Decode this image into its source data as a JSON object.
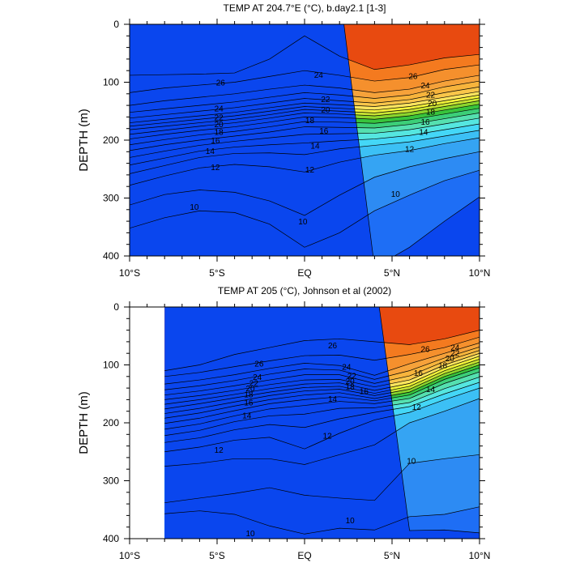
{
  "chart_data": [
    {
      "type": "contour",
      "title": "TEMP AT 204.7°E (°C), b.day2.1 [1-3]",
      "xlabel": "",
      "ylabel": "DEPTH (m)",
      "xlim": [
        -10,
        10
      ],
      "ylim": [
        400,
        0
      ],
      "x_ticks": [
        {
          "value": -10,
          "label": "10°S"
        },
        {
          "value": -5,
          "label": "5°S"
        },
        {
          "value": 0,
          "label": "EQ"
        },
        {
          "value": 5,
          "label": "5°N"
        },
        {
          "value": 10,
          "label": "10°N"
        }
      ],
      "y_ticks": [
        {
          "value": 0,
          "label": "0"
        },
        {
          "value": 100,
          "label": "100"
        },
        {
          "value": 200,
          "label": "200"
        },
        {
          "value": 300,
          "label": "300"
        },
        {
          "value": 400,
          "label": "400"
        }
      ],
      "data_extent": [
        -10,
        10
      ],
      "contour_levels": [
        8,
        9,
        10,
        11,
        12,
        13,
        14,
        15,
        16,
        17,
        18,
        19,
        20,
        21,
        22,
        23,
        24,
        25,
        26,
        27
      ],
      "isotherm_depths": {
        "x": [
          -10,
          -8,
          -6,
          -4,
          -2,
          0,
          2,
          4,
          6,
          8,
          10
        ],
        "27": [
          null,
          null,
          null,
          null,
          null,
          null,
          null,
          null,
          null,
          null,
          null
        ],
        "26": [
          88,
          87,
          86,
          84,
          60,
          20,
          55,
          78,
          70,
          58,
          52
        ],
        "25": [
          118,
          110,
          105,
          100,
          90,
          80,
          88,
          98,
          92,
          78,
          70
        ],
        "24": [
          140,
          132,
          126,
          120,
          112,
          105,
          110,
          118,
          112,
          98,
          88
        ],
        "23": [
          152,
          146,
          140,
          134,
          126,
          118,
          122,
          128,
          122,
          108,
          98
        ],
        "22": [
          162,
          156,
          150,
          144,
          136,
          128,
          132,
          136,
          130,
          118,
          108
        ],
        "21": [
          170,
          164,
          158,
          152,
          144,
          136,
          139,
          142,
          136,
          126,
          116
        ],
        "20": [
          176,
          170,
          164,
          158,
          150,
          142,
          145,
          148,
          142,
          132,
          122
        ],
        "19": [
          182,
          176,
          170,
          164,
          156,
          147,
          150,
          153,
          147,
          137,
          127
        ],
        "18": [
          190,
          183,
          176,
          170,
          162,
          153,
          155,
          158,
          152,
          142,
          132
        ],
        "17": [
          198,
          190,
          183,
          177,
          169,
          160,
          161,
          164,
          158,
          148,
          138
        ],
        "16": [
          208,
          199,
          191,
          185,
          177,
          168,
          169,
          171,
          165,
          155,
          145
        ],
        "15": [
          218,
          208,
          200,
          193,
          186,
          177,
          178,
          179,
          173,
          163,
          153
        ],
        "14": [
          230,
          219,
          209,
          202,
          196,
          190,
          189,
          188,
          182,
          172,
          162
        ],
        "13": [
          243,
          231,
          219,
          212,
          208,
          205,
          201,
          198,
          192,
          182,
          172
        ],
        "12": [
          258,
          244,
          230,
          223,
          222,
          225,
          215,
          209,
          203,
          193,
          183
        ],
        "11": [
          278,
          262,
          248,
          242,
          246,
          255,
          238,
          226,
          218,
          206,
          196
        ],
        "10": [
          312,
          294,
          286,
          290,
          305,
          330,
          295,
          264,
          246,
          232,
          220
        ],
        "9": [
          352,
          334,
          322,
          325,
          345,
          385,
          360,
          322,
          295,
          270,
          252
        ],
        "8": [
          null,
          null,
          null,
          null,
          null,
          null,
          null,
          420,
          385,
          340,
          298
        ]
      },
      "contour_labels": [
        {
          "value": "26",
          "x": -4.8,
          "depth": 100
        },
        {
          "value": "24",
          "x": 0.8,
          "depth": 87
        },
        {
          "value": "26",
          "x": 6.2,
          "depth": 89
        },
        {
          "value": "24",
          "x": 6.9,
          "depth": 105
        },
        {
          "value": "22",
          "x": 7.2,
          "depth": 121
        },
        {
          "value": "20",
          "x": 7.3,
          "depth": 136
        },
        {
          "value": "18",
          "x": 7.2,
          "depth": 150
        },
        {
          "value": "22",
          "x": 1.2,
          "depth": 129
        },
        {
          "value": "20",
          "x": 1.2,
          "depth": 147
        },
        {
          "value": "18",
          "x": 0.3,
          "depth": 165
        },
        {
          "value": "16",
          "x": 1.1,
          "depth": 183
        },
        {
          "value": "16",
          "x": 6.9,
          "depth": 168
        },
        {
          "value": "14",
          "x": 6.8,
          "depth": 185
        },
        {
          "value": "12",
          "x": 6.0,
          "depth": 215
        },
        {
          "value": "24",
          "x": -4.9,
          "depth": 145
        },
        {
          "value": "22",
          "x": -4.9,
          "depth": 160
        },
        {
          "value": "20",
          "x": -4.9,
          "depth": 172
        },
        {
          "value": "18",
          "x": -4.9,
          "depth": 185
        },
        {
          "value": "16",
          "x": -5.1,
          "depth": 200
        },
        {
          "value": "14",
          "x": -5.4,
          "depth": 218
        },
        {
          "value": "12",
          "x": -5.1,
          "depth": 246
        },
        {
          "value": "14",
          "x": 0.6,
          "depth": 209
        },
        {
          "value": "12",
          "x": 0.3,
          "depth": 250
        },
        {
          "value": "10",
          "x": -6.3,
          "depth": 315
        },
        {
          "value": "10",
          "x": -0.1,
          "depth": 340
        },
        {
          "value": "10",
          "x": 5.2,
          "depth": 292
        }
      ]
    },
    {
      "type": "contour",
      "title": "TEMP AT 205 (°C), Johnson et al (2002)",
      "xlabel": "",
      "ylabel": "DEPTH (m)",
      "xlim": [
        -10,
        10
      ],
      "ylim": [
        400,
        0
      ],
      "x_ticks": [
        {
          "value": -10,
          "label": "10°S"
        },
        {
          "value": -5,
          "label": "5°S"
        },
        {
          "value": 0,
          "label": "EQ"
        },
        {
          "value": 5,
          "label": "5°N"
        },
        {
          "value": 10,
          "label": "10°N"
        }
      ],
      "y_ticks": [
        {
          "value": 0,
          "label": "0"
        },
        {
          "value": 100,
          "label": "100"
        },
        {
          "value": 200,
          "label": "200"
        },
        {
          "value": 300,
          "label": "300"
        },
        {
          "value": 400,
          "label": "400"
        }
      ],
      "data_extent": [
        -8,
        10
      ],
      "contour_levels": [
        8,
        9,
        10,
        11,
        12,
        13,
        14,
        15,
        16,
        17,
        18,
        19,
        20,
        21,
        22,
        23,
        24,
        25,
        26,
        27
      ],
      "isotherm_depths": {
        "x": [
          -8,
          -6,
          -4,
          -2,
          0,
          2,
          4,
          6,
          8,
          10
        ],
        "27": [
          null,
          null,
          null,
          null,
          null,
          null,
          null,
          null,
          null,
          null
        ],
        "26": [
          110,
          100,
          82,
          70,
          58,
          55,
          60,
          65,
          55,
          40
        ],
        "25": [
          120,
          113,
          103,
          93,
          84,
          83,
          92,
          82,
          70,
          52
        ],
        "24": [
          133,
          126,
          117,
          106,
          97,
          101,
          118,
          98,
          80,
          62
        ],
        "23": [
          143,
          136,
          127,
          116,
          107,
          109,
          125,
          110,
          88,
          69
        ],
        "22": [
          152,
          145,
          136,
          126,
          117,
          117,
          132,
          119,
          94,
          75
        ],
        "21": [
          160,
          153,
          144,
          134,
          126,
          125,
          138,
          126,
          100,
          80
        ],
        "20": [
          168,
          160,
          151,
          141,
          133,
          131,
          144,
          132,
          105,
          85
        ],
        "19": [
          176,
          167,
          157,
          147,
          139,
          137,
          149,
          137,
          110,
          90
        ],
        "18": [
          184,
          175,
          164,
          153,
          145,
          142,
          153,
          142,
          115,
          95
        ],
        "17": [
          192,
          183,
          171,
          160,
          152,
          148,
          158,
          147,
          120,
          100
        ],
        "16": [
          201,
          192,
          179,
          167,
          160,
          155,
          162,
          152,
          125,
          105
        ],
        "15": [
          211,
          202,
          188,
          176,
          170,
          163,
          167,
          158,
          132,
          112
        ],
        "14": [
          222,
          213,
          198,
          188,
          185,
          175,
          174,
          165,
          141,
          121
        ],
        "13": [
          234,
          226,
          212,
          203,
          208,
          193,
          182,
          172,
          150,
          130
        ],
        "12": [
          250,
          242,
          230,
          225,
          245,
          218,
          195,
          182,
          160,
          140
        ],
        "11": [
          275,
          270,
          262,
          262,
          272,
          255,
          238,
          200,
          180,
          158
        ],
        "10": [
          338,
          330,
          322,
          312,
          325,
          330,
          334,
          270,
          262,
          255
        ],
        "9": [
          357,
          352,
          358,
          378,
          392,
          382,
          385,
          362,
          358,
          345
        ],
        "8": [
          null,
          null,
          null,
          null,
          null,
          null,
          null,
          386,
          385,
          390
        ]
      },
      "contour_labels": [
        {
          "value": "26",
          "x": -2.6,
          "depth": 97
        },
        {
          "value": "26",
          "x": 1.6,
          "depth": 66
        },
        {
          "value": "24",
          "x": 2.4,
          "depth": 103
        },
        {
          "value": "22",
          "x": 2.7,
          "depth": 118
        },
        {
          "value": "20",
          "x": 2.6,
          "depth": 127
        },
        {
          "value": "18",
          "x": 2.6,
          "depth": 137
        },
        {
          "value": "16",
          "x": 3.4,
          "depth": 145
        },
        {
          "value": "14",
          "x": 1.6,
          "depth": 158
        },
        {
          "value": "26",
          "x": 6.9,
          "depth": 72
        },
        {
          "value": "24",
          "x": 8.6,
          "depth": 69
        },
        {
          "value": "22",
          "x": 8.6,
          "depth": 79
        },
        {
          "value": "20",
          "x": 8.3,
          "depth": 88
        },
        {
          "value": "18",
          "x": 7.9,
          "depth": 100
        },
        {
          "value": "16",
          "x": 6.5,
          "depth": 113
        },
        {
          "value": "14",
          "x": 7.2,
          "depth": 141
        },
        {
          "value": "12",
          "x": 6.4,
          "depth": 172
        },
        {
          "value": "24",
          "x": -2.7,
          "depth": 120
        },
        {
          "value": "22",
          "x": -2.9,
          "depth": 131
        },
        {
          "value": "20",
          "x": -3.1,
          "depth": 140
        },
        {
          "value": "18",
          "x": -3.2,
          "depth": 150
        },
        {
          "value": "16",
          "x": -3.2,
          "depth": 164
        },
        {
          "value": "14",
          "x": -3.3,
          "depth": 187
        },
        {
          "value": "12",
          "x": -4.9,
          "depth": 246
        },
        {
          "value": "12",
          "x": 1.3,
          "depth": 222
        },
        {
          "value": "10",
          "x": 6.1,
          "depth": 265
        },
        {
          "value": "10",
          "x": 2.6,
          "depth": 368
        },
        {
          "value": "10",
          "x": -3.1,
          "depth": 390
        }
      ]
    }
  ]
}
